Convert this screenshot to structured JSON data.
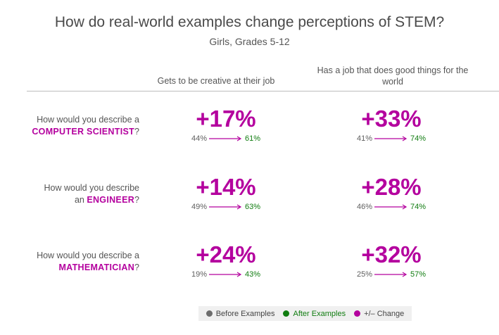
{
  "chart_data": {
    "type": "table",
    "title": "How do real-world examples change perceptions of STEM?",
    "subtitle": "Girls, Grades 5-12",
    "columns": [
      "Gets to be creative at their job",
      "Has a job that does good things for the world"
    ],
    "rows": [
      {
        "label_prefix": "How would you describe a",
        "profession": "COMPUTER SCIENTIST",
        "label_suffix": "?",
        "cells": [
          {
            "change": "+17%",
            "before": "44%",
            "after": "61%"
          },
          {
            "change": "+33%",
            "before": "41%",
            "after": "74%"
          }
        ]
      },
      {
        "label_prefix": "How would you describe",
        "label_prefix2": "an",
        "profession": "ENGINEER",
        "label_suffix": "?",
        "cells": [
          {
            "change": "+14%",
            "before": "49%",
            "after": "63%"
          },
          {
            "change": "+28%",
            "before": "46%",
            "after": "74%"
          }
        ]
      },
      {
        "label_prefix": "How would you describe a",
        "profession": "MATHEMATICIAN",
        "label_suffix": "?",
        "cells": [
          {
            "change": "+24%",
            "before": "19%",
            "after": "43%"
          },
          {
            "change": "+32%",
            "before": "25%",
            "after": "57%"
          }
        ]
      }
    ],
    "legend": [
      {
        "label": "Before Examples",
        "color": "#6d6d6d"
      },
      {
        "label": "After Examples",
        "color": "#107c10"
      },
      {
        "label": "+/– Change",
        "color": "#b4009e"
      }
    ],
    "legend_position": "bottom-center"
  },
  "colors": {
    "accent": "#b4009e",
    "after": "#107c10",
    "before": "#6d6d6d"
  }
}
